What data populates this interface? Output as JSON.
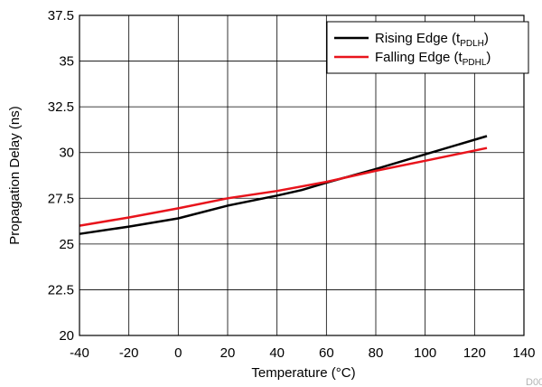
{
  "chart_data": {
    "type": "line",
    "title": "",
    "xlabel": "Temperature (°C)",
    "ylabel": "Propagation Delay (ns)",
    "xlim": [
      -40,
      140
    ],
    "ylim": [
      20,
      37.5
    ],
    "x_ticks": [
      -40,
      -20,
      0,
      20,
      40,
      60,
      80,
      100,
      120,
      140
    ],
    "y_ticks": [
      20,
      22.5,
      25,
      27.5,
      30,
      32.5,
      35,
      37.5
    ],
    "x_tick_labels": [
      "-40",
      "-20",
      "0",
      "20",
      "40",
      "60",
      "80",
      "100",
      "120",
      "140"
    ],
    "y_tick_labels": [
      "20",
      "22.5",
      "25",
      "27.5",
      "30",
      "32.5",
      "35",
      "37.5"
    ],
    "grid": true,
    "legend_position": "top-right",
    "series": [
      {
        "name": "Rising Edge (tPDLH)",
        "legend_main": "Rising Edge (t",
        "legend_sub": "PDLH",
        "legend_close": ")",
        "color": "#000000",
        "x": [
          -40,
          -20,
          0,
          20,
          40,
          50,
          60,
          80,
          100,
          125
        ],
        "y": [
          25.55,
          25.95,
          26.4,
          27.1,
          27.65,
          27.95,
          28.35,
          29.1,
          29.9,
          30.9
        ]
      },
      {
        "name": "Falling Edge (tPDHL)",
        "legend_main": "Falling Edge (t",
        "legend_sub": "PDHL",
        "legend_close": ")",
        "color": "#e8141c",
        "x": [
          -40,
          -20,
          0,
          20,
          40,
          60,
          80,
          100,
          125
        ],
        "y": [
          26.0,
          26.45,
          26.95,
          27.5,
          27.9,
          28.4,
          29.0,
          29.55,
          30.25
        ]
      }
    ]
  },
  "watermark": "D00"
}
